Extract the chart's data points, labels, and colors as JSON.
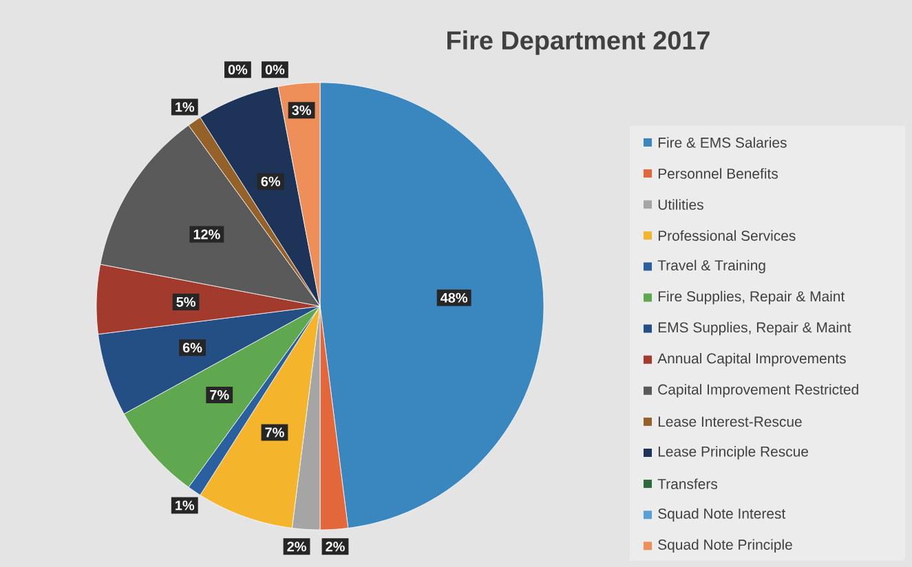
{
  "chart_data": {
    "type": "pie",
    "title": "Fire Department 2017",
    "categories": [
      "Fire & EMS Salaries",
      "Personnel Benefits",
      "Utilities",
      "Professional Services",
      "Travel & Training",
      "Fire Supplies, Repair & Maint",
      "EMS Supplies, Repair & Maint",
      "Annual Capital Improvements",
      "Capital Improvement Restricted",
      "Lease Interest-Rescue",
      "Lease Principle Rescue",
      "Transfers",
      "Squad Note Interest",
      "Squad Note Principle"
    ],
    "values": [
      48,
      2,
      2,
      7,
      1,
      7,
      6,
      5,
      12,
      1,
      6,
      0,
      0,
      3
    ],
    "value_labels": [
      "48%",
      "2%",
      "2%",
      "7%",
      "1%",
      "7%",
      "6%",
      "5%",
      "12%",
      "1%",
      "6%",
      "0%",
      "0%",
      "3%"
    ],
    "colors": [
      "#3a87c0",
      "#e2673a",
      "#a5a5a5",
      "#f4b42c",
      "#2a5fa0",
      "#5fa84f",
      "#244f84",
      "#a33a2e",
      "#5a5a5a",
      "#946129",
      "#1e3358",
      "#2e6b3a",
      "#5aa0d8",
      "#ee8f5a"
    ],
    "legend": "right"
  }
}
